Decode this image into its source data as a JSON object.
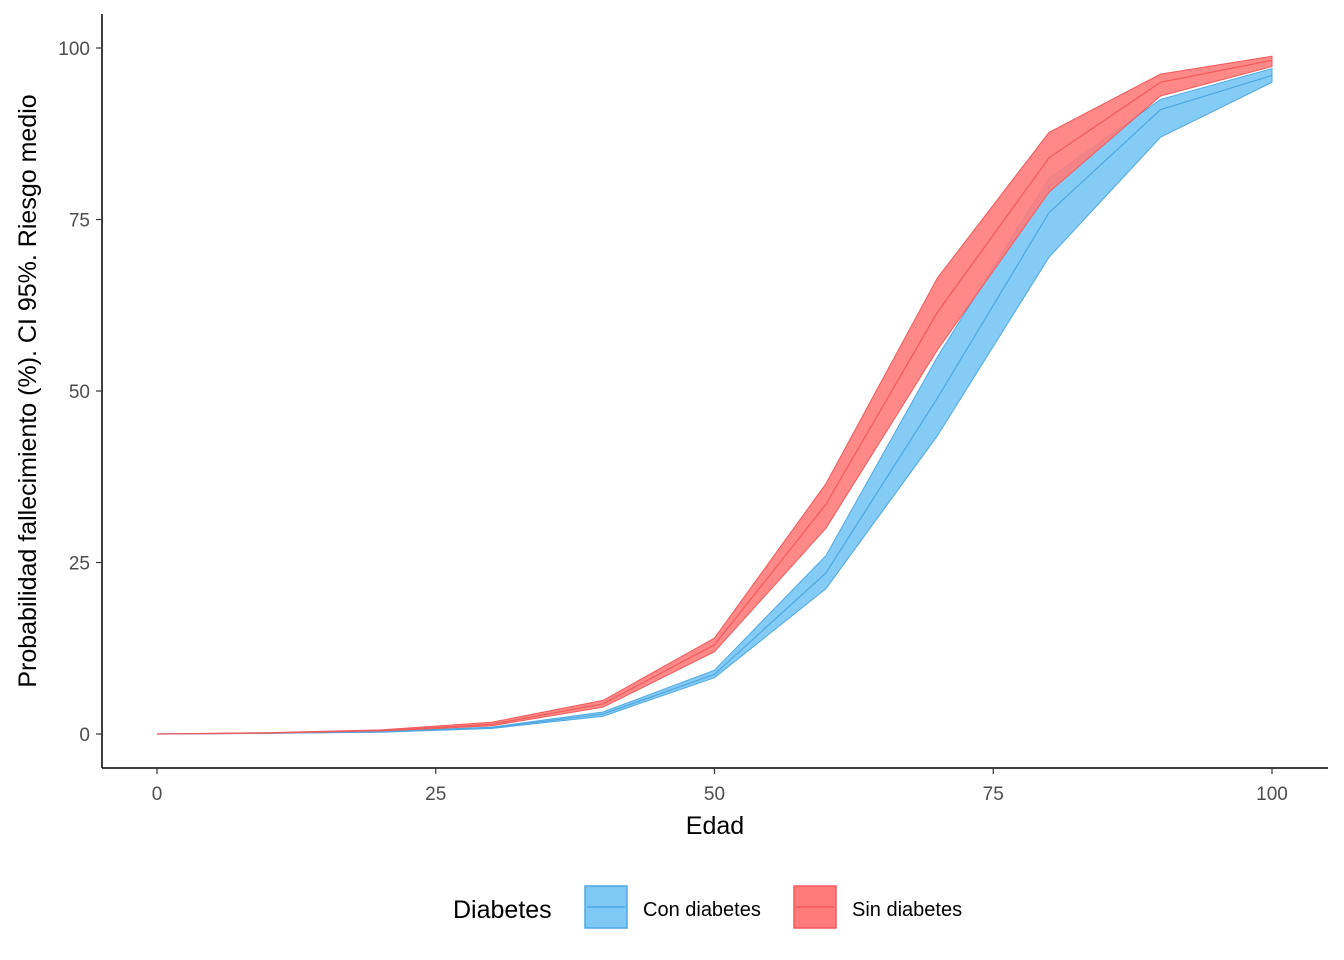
{
  "chart_data": {
    "type": "area",
    "xlabel": "Edad",
    "ylabel": "Probabilidad fallecimiento (%). CI 95%. Riesgo medio",
    "xlim": [
      0,
      100
    ],
    "ylim": [
      0,
      100
    ],
    "x_ticks": [
      "0",
      "25",
      "50",
      "75",
      "100"
    ],
    "y_ticks": [
      "0",
      "25",
      "50",
      "75",
      "100"
    ],
    "grid": false,
    "legend": {
      "title": "Diabetes",
      "position": "bottom"
    },
    "x": [
      0,
      10,
      20,
      30,
      40,
      50,
      60,
      70,
      80,
      90,
      100
    ],
    "series": [
      {
        "name": "Con diabetes",
        "color": "#56B4E9",
        "fill": "#7DC8F5",
        "line_color": "#4FA8E0",
        "mean": [
          0.0,
          0.1,
          0.3,
          0.9,
          2.9,
          8.7,
          23.5,
          49.0,
          76.0,
          91.0,
          96.0
        ],
        "lower": [
          0.0,
          0.1,
          0.25,
          0.8,
          2.6,
          8.2,
          21.2,
          43.5,
          69.5,
          87.0,
          95.0
        ],
        "upper": [
          0.0,
          0.15,
          0.35,
          1.0,
          3.2,
          9.3,
          26.0,
          55.0,
          81.0,
          92.5,
          97.0
        ]
      },
      {
        "name": "Sin diabetes",
        "color": "#F8766D",
        "fill": "#FF7B7B",
        "line_color": "#F25A5A",
        "mean": [
          0.0,
          0.15,
          0.5,
          1.4,
          4.4,
          13.0,
          33.5,
          61.5,
          84.0,
          95.0,
          98.2
        ],
        "lower": [
          0.0,
          0.1,
          0.4,
          1.2,
          3.9,
          12.0,
          30.0,
          56.0,
          79.0,
          93.0,
          97.3
        ],
        "upper": [
          0.0,
          0.2,
          0.6,
          1.7,
          4.9,
          14.0,
          36.5,
          66.5,
          87.7,
          96.2,
          98.8
        ]
      }
    ]
  }
}
